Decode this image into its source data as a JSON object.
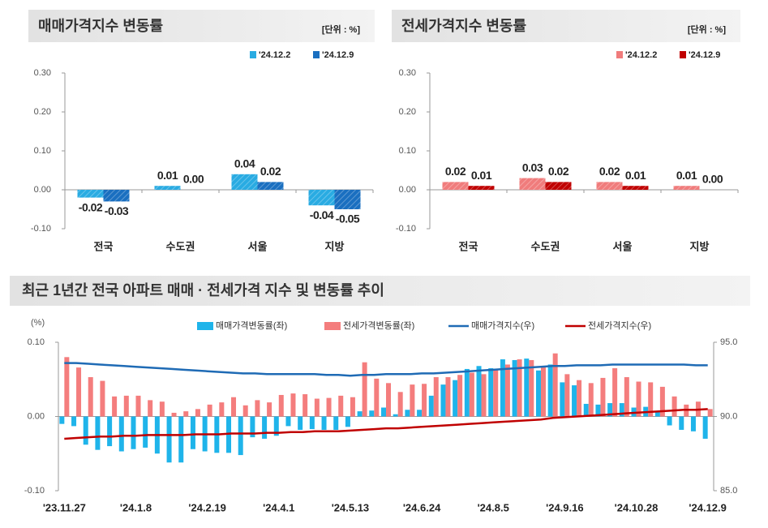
{
  "chart_data": [
    {
      "type": "bar",
      "title": "매매가격지수 변동률",
      "unit": "[단위 : %]",
      "categories": [
        "전국",
        "수도권",
        "서울",
        "지방"
      ],
      "series": [
        {
          "name": "'24.12.2",
          "color": "#29abe2",
          "values": [
            -0.02,
            0.01,
            0.04,
            -0.04
          ],
          "value_labels": [
            "-0.02",
            "0.01",
            "0.04",
            "-0.04"
          ]
        },
        {
          "name": "'24.12.9",
          "color": "#1a6fc0",
          "values": [
            -0.03,
            0,
            0.02,
            -0.05
          ],
          "value_labels": [
            "-0.03",
            "0.00",
            "0.02",
            "-0.05"
          ]
        }
      ],
      "ylim": [
        -0.1,
        0.3
      ],
      "yticks": [
        {
          "value": 0.3,
          "label": "0.30"
        },
        {
          "value": 0.2,
          "label": "0.20"
        },
        {
          "value": 0.1,
          "label": "0.10"
        },
        {
          "value": 0,
          "label": "0.00"
        },
        {
          "value": -0.1,
          "label": "-0.10"
        }
      ]
    },
    {
      "type": "bar",
      "title": "전세가격지수 변동률",
      "unit": "[단위 : %]",
      "categories": [
        "전국",
        "수도권",
        "서울",
        "지방"
      ],
      "series": [
        {
          "name": "'24.12.2",
          "color": "#f07c7c",
          "values": [
            0.02,
            0.03,
            0.02,
            0.01
          ],
          "value_labels": [
            "0.02",
            "0.03",
            "0.02",
            "0.01"
          ]
        },
        {
          "name": "'24.12.9",
          "color": "#c00000",
          "values": [
            0.01,
            0.02,
            0.01,
            0
          ],
          "value_labels": [
            "0.01",
            "0.02",
            "0.01",
            "0.00"
          ]
        }
      ],
      "ylim": [
        -0.1,
        0.3
      ],
      "yticks": [
        {
          "value": 0.3,
          "label": "0.30"
        },
        {
          "value": 0.2,
          "label": "0.20"
        },
        {
          "value": 0.1,
          "label": "0.10"
        },
        {
          "value": 0,
          "label": "0.00"
        },
        {
          "value": -0.1,
          "label": "-0.10"
        }
      ]
    },
    {
      "type": "combo",
      "title": "최근 1년간 전국 아파트 매매 · 전세가격 지수 및 변동률 추이",
      "y_label": "(%)",
      "categories": [
        "'23.11.27",
        null,
        null,
        null,
        null,
        null,
        "'24.1.8",
        null,
        null,
        null,
        null,
        null,
        "'24.2.19",
        null,
        null,
        null,
        null,
        null,
        "'24.4.1",
        null,
        null,
        null,
        null,
        null,
        "'24.5.13",
        null,
        null,
        null,
        null,
        null,
        "'24.6.24",
        null,
        null,
        null,
        null,
        null,
        "'24.8.5",
        null,
        null,
        null,
        null,
        null,
        "'24.9.16",
        null,
        null,
        null,
        null,
        null,
        "'24.10.28",
        null,
        null,
        null,
        null,
        null,
        "'24.12.9"
      ],
      "series": [
        {
          "name": "매매가격변동률(좌)",
          "type": "bar",
          "color": "#1fb4ea",
          "values": [
            -0.01,
            -0.013,
            -0.038,
            -0.045,
            -0.04,
            -0.047,
            -0.044,
            -0.042,
            -0.05,
            -0.062,
            -0.062,
            -0.044,
            -0.047,
            -0.049,
            -0.049,
            -0.052,
            -0.028,
            -0.03,
            -0.026,
            -0.013,
            -0.018,
            -0.017,
            -0.018,
            -0.018,
            -0.014,
            0.007,
            0.008,
            0.012,
            0.003,
            0.009,
            0.009,
            0.028,
            0.043,
            0.049,
            0.064,
            0.068,
            0.065,
            0.077,
            0.076,
            0.078,
            0.062,
            0.07,
            0.046,
            0.042,
            0.017,
            0.016,
            0.018,
            0.018,
            0.012,
            0.013,
            0.006,
            -0.012,
            -0.018,
            -0.02,
            -0.03
          ]
        },
        {
          "name": "전세가격변동률(좌)",
          "type": "bar",
          "color": "#f47d7d",
          "values": [
            0.08,
            0.066,
            0.053,
            0.048,
            0.027,
            0.028,
            0.028,
            0.022,
            0.02,
            0.005,
            0.007,
            0.01,
            0.016,
            0.019,
            0.026,
            0.015,
            0.022,
            0.019,
            0.029,
            0.031,
            0.03,
            0.024,
            0.025,
            0.028,
            0.026,
            0.073,
            0.051,
            0.045,
            0.033,
            0.043,
            0.044,
            0.053,
            0.053,
            0.056,
            0.059,
            0.057,
            0.063,
            0.07,
            0.077,
            0.076,
            0.067,
            0.085,
            0.057,
            0.049,
            0.045,
            0.052,
            0.065,
            0.053,
            0.047,
            0.046,
            0.04,
            0.027,
            0.016,
            0.02,
            0.01
          ]
        },
        {
          "name": "매매가격지수(우)",
          "type": "line",
          "axis": "y2",
          "color": "#1f6bb5",
          "values": [
            93.6,
            93.6,
            93.55,
            93.5,
            93.45,
            93.4,
            93.35,
            93.3,
            93.25,
            93.2,
            93.15,
            93.1,
            93.05,
            93.0,
            92.95,
            92.9,
            92.9,
            92.85,
            92.85,
            92.85,
            92.85,
            92.85,
            92.8,
            92.8,
            92.75,
            92.8,
            92.8,
            92.85,
            92.85,
            92.85,
            92.9,
            92.9,
            92.95,
            93.0,
            93.05,
            93.1,
            93.15,
            93.2,
            93.25,
            93.3,
            93.35,
            93.4,
            93.4,
            93.45,
            93.45,
            93.45,
            93.5,
            93.5,
            93.5,
            93.5,
            93.5,
            93.5,
            93.5,
            93.45,
            93.45
          ]
        },
        {
          "name": "전세가격지수(우)",
          "type": "line",
          "axis": "y2",
          "color": "#c00000",
          "values": [
            88.5,
            88.55,
            88.6,
            88.65,
            88.65,
            88.7,
            88.7,
            88.75,
            88.75,
            88.75,
            88.75,
            88.8,
            88.8,
            88.8,
            88.85,
            88.85,
            88.85,
            88.9,
            88.9,
            88.95,
            88.95,
            89.0,
            89.0,
            89.0,
            89.05,
            89.1,
            89.15,
            89.2,
            89.2,
            89.25,
            89.3,
            89.35,
            89.4,
            89.45,
            89.5,
            89.55,
            89.6,
            89.65,
            89.7,
            89.75,
            89.8,
            89.9,
            89.95,
            90.0,
            90.05,
            90.1,
            90.15,
            90.2,
            90.25,
            90.3,
            90.35,
            90.4,
            90.45,
            90.45,
            90.5
          ]
        }
      ],
      "ylim": [
        -0.1,
        0.1
      ],
      "yticks": [
        {
          "value": 0.1,
          "label": "0.10"
        },
        {
          "value": 0,
          "label": "0.00"
        },
        {
          "value": -0.1,
          "label": "-0.10"
        }
      ],
      "y2lim": [
        85,
        95
      ],
      "y2ticks": [
        {
          "value": 95,
          "label": "95.0"
        },
        {
          "value": 90,
          "label": "90.0"
        },
        {
          "value": 85,
          "label": "85.0"
        }
      ]
    }
  ]
}
